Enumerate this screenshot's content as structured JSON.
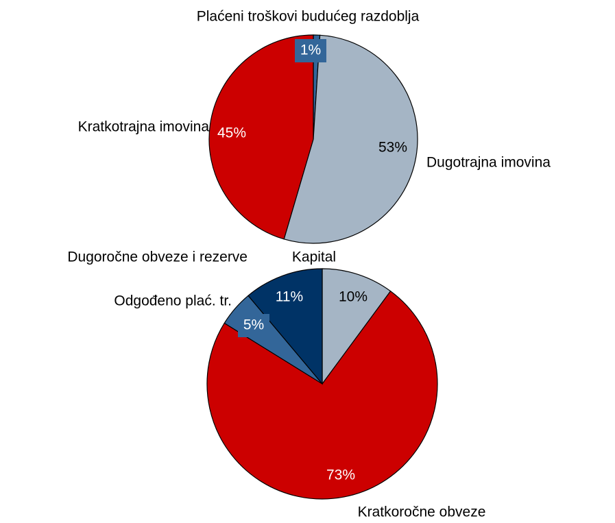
{
  "chart_data": [
    {
      "type": "pie",
      "categories": [
        "Plaćeni troškovi budućeg razdoblja",
        "Dugotrajna imovina",
        "Kratkotrajna imovina"
      ],
      "values": [
        1,
        53,
        45
      ],
      "value_labels": [
        "1%",
        "53%",
        "45%"
      ],
      "colors": [
        "#336699",
        "#a5b5c5",
        "#cc0000"
      ]
    },
    {
      "type": "pie",
      "categories": [
        "Kapital",
        "Kratkoročne obveze",
        "Odgođeno plać. tr.",
        "Dugoročne obveze i rezerve"
      ],
      "values": [
        10,
        73,
        5,
        11
      ],
      "value_labels": [
        "10%",
        "73%",
        "5%",
        "11%"
      ],
      "colors": [
        "#a5b5c5",
        "#cc0000",
        "#336699",
        "#003366"
      ]
    }
  ]
}
